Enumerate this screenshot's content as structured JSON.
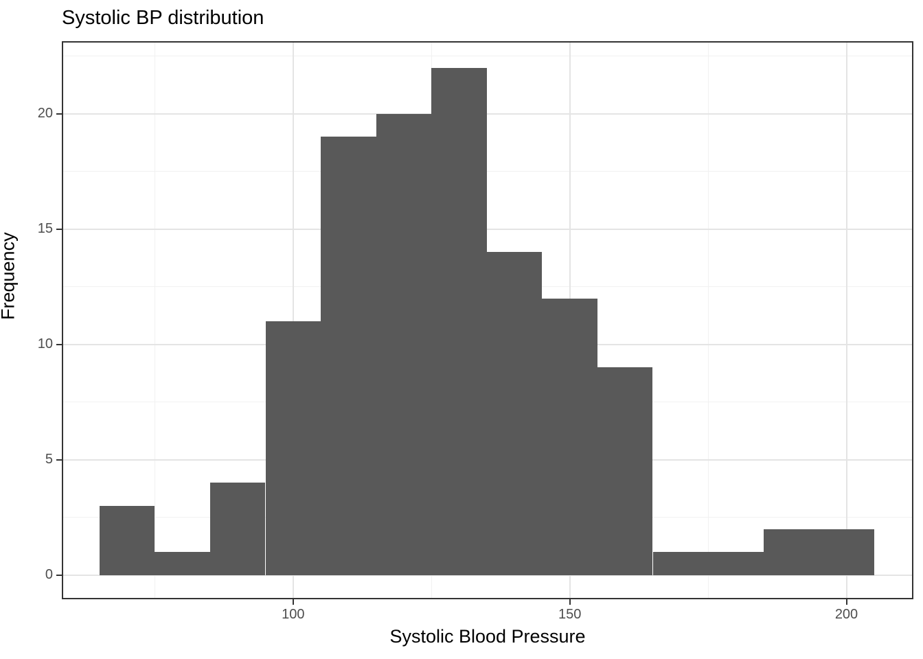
{
  "chart_data": {
    "type": "bar",
    "subtype": "histogram",
    "title": "Systolic BP distribution",
    "xlabel": "Systolic Blood Pressure",
    "ylabel": "Frequency",
    "bin_edges": [
      65,
      75,
      85,
      95,
      105,
      115,
      125,
      135,
      145,
      155,
      165,
      175,
      185,
      195,
      205
    ],
    "counts": [
      3,
      1,
      4,
      11,
      19,
      20,
      22,
      14,
      12,
      9,
      1,
      1,
      2,
      2
    ],
    "x_ticks": [
      100,
      150,
      200
    ],
    "y_ticks": [
      0,
      5,
      10,
      15,
      20
    ],
    "x_minor_gridlines": [
      75,
      125,
      175
    ],
    "y_minor_gridlines": [
      2.5,
      7.5,
      12.5,
      17.5,
      22.5
    ],
    "xlim": [
      58.2,
      212.1
    ],
    "ylim": [
      -1.05,
      23.15
    ],
    "grid": true,
    "legend": false
  },
  "colors": {
    "bar_fill": "#595959",
    "panel_border": "#333333",
    "axis_tick": "#333333",
    "grid_major": "#e4e4e4",
    "grid_minor": "#f1f1f1",
    "tick_label": "#4d4d4d",
    "title_text": "#000000",
    "background": "#ffffff"
  }
}
